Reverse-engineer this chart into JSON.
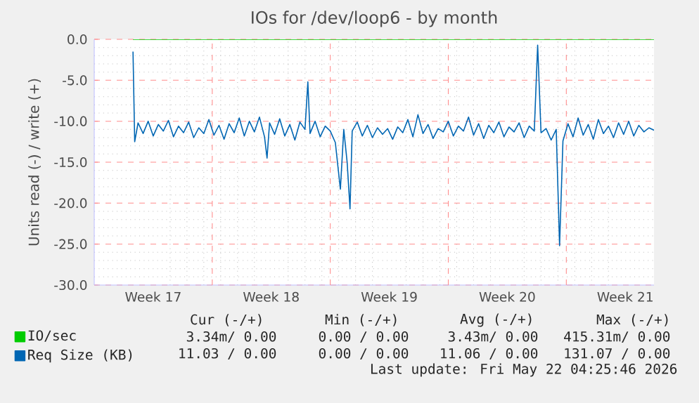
{
  "chart_data": {
    "type": "line",
    "title": "IOs for /dev/loop6 - by month",
    "ylabel": "Units read (-) / write (+)",
    "xlim": [
      "2026-04-20T00:00",
      "2026-05-23T04:48"
    ],
    "ylim": [
      -30,
      0
    ],
    "xticks": [
      {
        "value": "2026-04-23T12:00",
        "label": "Week 17"
      },
      {
        "value": "2026-04-27T00:00",
        "label": null
      },
      {
        "value": "2026-04-30T12:00",
        "label": "Week 18"
      },
      {
        "value": "2026-05-04T00:00",
        "label": null
      },
      {
        "value": "2026-05-07T12:00",
        "label": "Week 19"
      },
      {
        "value": "2026-05-11T00:00",
        "label": null
      },
      {
        "value": "2026-05-14T12:00",
        "label": "Week 20"
      },
      {
        "value": "2026-05-18T00:00",
        "label": null
      },
      {
        "value": "2026-05-21T12:00",
        "label": "Week 21"
      }
    ],
    "yticks": [
      {
        "value": 0,
        "label": "0.0"
      },
      {
        "value": -5,
        "label": "-5.0"
      },
      {
        "value": -10,
        "label": "-10.0"
      },
      {
        "value": -15,
        "label": "-15.0"
      },
      {
        "value": -20,
        "label": "-20.0"
      },
      {
        "value": -25,
        "label": "-25.0"
      },
      {
        "value": -30,
        "label": "-30.0"
      }
    ],
    "grid": true,
    "legend": "bottom",
    "series": [
      {
        "name": "IO/sec",
        "color": "#00cc00",
        "x": [
          "2026-04-22T07:12",
          "2026-05-23T04:48"
        ],
        "values": [
          0,
          0
        ]
      },
      {
        "name": "Req Size (KB)",
        "color": "#0066b3",
        "x": [
          "2026-04-22T07:12",
          "2026-04-22T09:36",
          "2026-04-22T14:24",
          "2026-04-22T21:36",
          "2026-04-23T04:48",
          "2026-04-23T12:00",
          "2026-04-23T19:12",
          "2026-04-24T02:24",
          "2026-04-24T09:36",
          "2026-04-24T16:48",
          "2026-04-25T00:00",
          "2026-04-25T07:12",
          "2026-04-25T14:24",
          "2026-04-25T21:36",
          "2026-04-26T04:48",
          "2026-04-26T12:00",
          "2026-04-26T19:12",
          "2026-04-27T02:24",
          "2026-04-27T09:36",
          "2026-04-27T16:48",
          "2026-04-28T00:00",
          "2026-04-28T07:12",
          "2026-04-28T14:24",
          "2026-04-28T21:36",
          "2026-04-29T04:48",
          "2026-04-29T12:00",
          "2026-04-29T19:12",
          "2026-04-30T02:24",
          "2026-04-30T06:00",
          "2026-04-30T09:36",
          "2026-04-30T16:48",
          "2026-05-01T00:00",
          "2026-05-01T07:12",
          "2026-05-01T14:24",
          "2026-05-01T21:36",
          "2026-05-02T04:48",
          "2026-05-02T12:00",
          "2026-05-02T16:05",
          "2026-05-02T19:12",
          "2026-05-03T02:24",
          "2026-05-03T09:36",
          "2026-05-03T16:48",
          "2026-05-04T00:00",
          "2026-05-04T07:12",
          "2026-05-04T14:24",
          "2026-05-04T19:12",
          "2026-05-05T00:00",
          "2026-05-05T04:05",
          "2026-05-05T07:12",
          "2026-05-05T14:24",
          "2026-05-05T21:36",
          "2026-05-06T04:48",
          "2026-05-06T12:00",
          "2026-05-06T19:12",
          "2026-05-07T02:24",
          "2026-05-07T09:36",
          "2026-05-07T16:48",
          "2026-05-08T00:00",
          "2026-05-08T07:12",
          "2026-05-08T14:24",
          "2026-05-08T21:36",
          "2026-05-09T04:48",
          "2026-05-09T12:00",
          "2026-05-09T19:12",
          "2026-05-10T02:24",
          "2026-05-10T09:36",
          "2026-05-10T16:48",
          "2026-05-11T00:00",
          "2026-05-11T07:12",
          "2026-05-11T14:24",
          "2026-05-11T21:36",
          "2026-05-12T04:48",
          "2026-05-12T12:00",
          "2026-05-12T19:12",
          "2026-05-13T02:24",
          "2026-05-13T09:36",
          "2026-05-13T16:48",
          "2026-05-14T00:00",
          "2026-05-14T07:12",
          "2026-05-14T14:24",
          "2026-05-14T21:36",
          "2026-05-15T04:48",
          "2026-05-15T12:00",
          "2026-05-15T19:12",
          "2026-05-16T02:24",
          "2026-05-16T07:12",
          "2026-05-16T12:00",
          "2026-05-16T19:12",
          "2026-05-17T02:24",
          "2026-05-17T09:36",
          "2026-05-17T14:24",
          "2026-05-17T19:12",
          "2026-05-18T02:24",
          "2026-05-18T09:36",
          "2026-05-18T16:48",
          "2026-05-19T00:00",
          "2026-05-19T07:12",
          "2026-05-19T14:24",
          "2026-05-19T21:36",
          "2026-05-20T04:48",
          "2026-05-20T12:00",
          "2026-05-20T19:12",
          "2026-05-21T02:24",
          "2026-05-21T09:36",
          "2026-05-21T16:48",
          "2026-05-22T00:00",
          "2026-05-22T07:12",
          "2026-05-22T14:24",
          "2026-05-22T21:36",
          "2026-05-23T04:48"
        ],
        "values": [
          -1.5,
          -12.5,
          -10.2,
          -11.5,
          -10.0,
          -11.8,
          -10.4,
          -11.2,
          -9.9,
          -11.9,
          -10.6,
          -11.4,
          -10.1,
          -12.0,
          -10.8,
          -11.5,
          -9.8,
          -11.7,
          -10.5,
          -12.2,
          -10.3,
          -11.4,
          -9.6,
          -11.8,
          -10.0,
          -11.3,
          -9.5,
          -11.9,
          -14.5,
          -10.2,
          -11.6,
          -9.7,
          -11.8,
          -10.4,
          -12.3,
          -10.1,
          -11.0,
          -5.2,
          -11.5,
          -10.0,
          -11.9,
          -10.6,
          -11.2,
          -12.6,
          -18.3,
          -11.0,
          -15.0,
          -20.7,
          -11.2,
          -10.1,
          -11.8,
          -10.5,
          -12.0,
          -10.8,
          -11.6,
          -10.9,
          -12.2,
          -10.7,
          -11.4,
          -9.8,
          -11.9,
          -9.2,
          -11.5,
          -10.4,
          -12.1,
          -10.9,
          -11.3,
          -10.0,
          -11.8,
          -10.6,
          -11.2,
          -9.5,
          -11.7,
          -10.3,
          -12.1,
          -10.5,
          -11.4,
          -10.1,
          -11.9,
          -10.7,
          -11.3,
          -10.2,
          -12.0,
          -10.6,
          -11.2,
          -0.7,
          -11.4,
          -10.9,
          -12.3,
          -11.0,
          -25.2,
          -12.4,
          -10.3,
          -11.9,
          -9.6,
          -11.7,
          -10.4,
          -12.2,
          -9.8,
          -11.5,
          -10.6,
          -12.0,
          -10.2,
          -11.6,
          -10.0,
          -11.8,
          -10.5,
          -11.3,
          -10.8,
          -11.1
        ]
      }
    ],
    "annotations": [
      "Cur (-/+)",
      "Min (-/+)",
      "Avg (-/+)",
      "Max (-/+)",
      "3.34m/ 0.00",
      "0.00 / 0.00",
      "3.43m/ 0.00",
      "415.31m/ 0.00",
      "11.03 / 0.00",
      "0.00 / 0.00",
      "11.06 / 0.00",
      "131.07 / 0.00",
      "Last update: Fri May 22 04:25:46 2026"
    ]
  }
}
